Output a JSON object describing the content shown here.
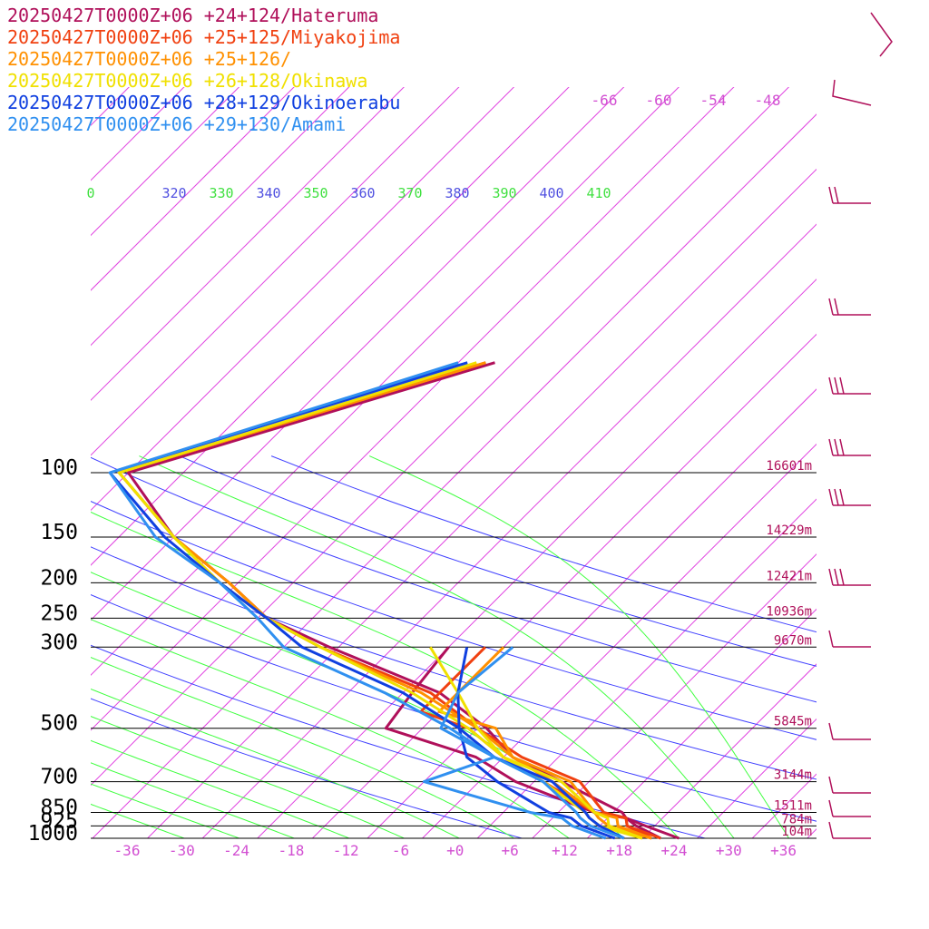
{
  "chart_data": {
    "type": "line",
    "title": "",
    "xlabel": "",
    "ylabel": "",
    "legend_position": "top-left",
    "colors": {
      "isotherm": "#e040e0",
      "isobar": "#000000",
      "theta": "#4040ff",
      "theta_e": "#40ff40",
      "label_pink": "#d24fd2",
      "theta_label": "#5050e0",
      "theta_e_label": "#40e040",
      "wind": "#b0105a"
    },
    "pressure_levels": [
      {
        "p": 100,
        "label": "100",
        "height": "16601m"
      },
      {
        "p": 150,
        "label": "150",
        "height": "14229m"
      },
      {
        "p": 200,
        "label": "200",
        "height": "12421m"
      },
      {
        "p": 250,
        "label": "250",
        "height": "10936m"
      },
      {
        "p": 300,
        "label": "300",
        "height": "9670m"
      },
      {
        "p": 500,
        "label": "500",
        "height": "5845m"
      },
      {
        "p": 700,
        "label": "700",
        "height": "3144m"
      },
      {
        "p": 850,
        "label": "850",
        "height": "1511m"
      },
      {
        "p": 925,
        "label": "925",
        "height": "784m"
      },
      {
        "p": 1000,
        "label": "1000",
        "height": "104m"
      }
    ],
    "temp_ticks": [
      "-36",
      "-30",
      "-24",
      "-18",
      "-12",
      "-6",
      "+0",
      "+6",
      "+12",
      "+18",
      "+24",
      "+30",
      "+36"
    ],
    "upper_temp_labels": [
      "-66",
      "-60",
      "-54",
      "-48"
    ],
    "theta_labels": [
      {
        "text": "0",
        "kind": "theta_e"
      },
      {
        "text": "320",
        "kind": "theta"
      },
      {
        "text": "330",
        "kind": "theta_e"
      },
      {
        "text": "340",
        "kind": "theta"
      },
      {
        "text": "350",
        "kind": "theta_e"
      },
      {
        "text": "360",
        "kind": "theta"
      },
      {
        "text": "370",
        "kind": "theta_e"
      },
      {
        "text": "380",
        "kind": "theta"
      },
      {
        "text": "390",
        "kind": "theta_e"
      },
      {
        "text": "400",
        "kind": "theta"
      },
      {
        "text": "410",
        "kind": "theta_e"
      }
    ],
    "series": [
      {
        "name": "20250427T0000Z+06 +24+124/Hateruma",
        "color": "#b0105a",
        "temperature": [
          [
            -48,
            50
          ],
          [
            -76,
            100
          ],
          [
            -64,
            150
          ],
          [
            -53,
            200
          ],
          [
            -45,
            250
          ],
          [
            -35,
            300
          ],
          [
            -18,
            400
          ],
          [
            -9,
            500
          ],
          [
            -3,
            600
          ],
          [
            5,
            700
          ],
          [
            15,
            850
          ],
          [
            16,
            880
          ],
          [
            19,
            925
          ],
          [
            24,
            1000
          ]
        ],
        "dewpoint": [
          [
            -22,
            300
          ],
          [
            -21,
            400
          ],
          [
            -20,
            500
          ],
          [
            -7,
            600
          ],
          [
            0,
            700
          ],
          [
            12,
            850
          ],
          [
            16,
            880
          ],
          [
            18,
            925
          ],
          [
            22,
            1000
          ]
        ]
      },
      {
        "name": "20250427T0000Z+06 +25+125/Miyakojima",
        "color": "#f04010",
        "temperature": [
          [
            -49,
            50
          ],
          [
            -77,
            100
          ],
          [
            -64,
            150
          ],
          [
            -53,
            200
          ],
          [
            -45,
            250
          ],
          [
            -36,
            300
          ],
          [
            -19,
            400
          ],
          [
            -10,
            500
          ],
          [
            -2,
            600
          ],
          [
            7,
            700
          ],
          [
            13,
            850
          ],
          [
            16,
            880
          ],
          [
            17,
            925
          ],
          [
            22,
            1000
          ]
        ],
        "dewpoint": [
          [
            -18,
            300
          ],
          [
            -18,
            450
          ],
          [
            -11,
            500
          ],
          [
            -4,
            600
          ],
          [
            3,
            700
          ],
          [
            12,
            850
          ],
          [
            16,
            880
          ],
          [
            17,
            925
          ],
          [
            21,
            1000
          ]
        ]
      },
      {
        "name": "20250427T0000Z+06 +25+126/",
        "color": "#ff9000",
        "temperature": [
          [
            -49,
            50
          ],
          [
            -77,
            100
          ],
          [
            -64,
            150
          ],
          [
            -53,
            200
          ],
          [
            -45,
            250
          ],
          [
            -36,
            300
          ],
          [
            -20,
            400
          ],
          [
            -10,
            500
          ],
          [
            -3,
            600
          ],
          [
            6,
            700
          ],
          [
            12,
            850
          ],
          [
            15,
            880
          ],
          [
            16,
            925
          ],
          [
            21,
            1000
          ]
        ],
        "dewpoint": [
          [
            -16,
            300
          ],
          [
            -16,
            450
          ],
          [
            -8,
            500
          ],
          [
            -3,
            600
          ],
          [
            4,
            700
          ],
          [
            12,
            850
          ],
          [
            13,
            880
          ],
          [
            15,
            925
          ],
          [
            21,
            1000
          ]
        ]
      },
      {
        "name": "20250427T0000Z+06 +26+128/Okinawa",
        "color": "#f0e000",
        "temperature": [
          [
            -50,
            50
          ],
          [
            -77,
            100
          ],
          [
            -64,
            150
          ],
          [
            -54,
            200
          ],
          [
            -45,
            250
          ],
          [
            -36,
            300
          ],
          [
            -21,
            400
          ],
          [
            -11,
            500
          ],
          [
            -4,
            600
          ],
          [
            5,
            700
          ],
          [
            12,
            850
          ],
          [
            14,
            880
          ],
          [
            15,
            925
          ],
          [
            20,
            1000
          ]
        ],
        "dewpoint": [
          [
            -24,
            300
          ],
          [
            -16,
            400
          ],
          [
            -10,
            500
          ],
          [
            -4,
            600
          ],
          [
            3,
            700
          ],
          [
            11,
            850
          ],
          [
            12,
            880
          ],
          [
            14,
            925
          ],
          [
            20,
            1000
          ]
        ]
      },
      {
        "name": "20250427T0000Z+06 +28+129/Okinoerabu",
        "color": "#1040e0",
        "temperature": [
          [
            -51,
            50
          ],
          [
            -78,
            100
          ],
          [
            -65,
            150
          ],
          [
            -54,
            200
          ],
          [
            -45,
            250
          ],
          [
            -38,
            300
          ],
          [
            -22,
            400
          ],
          [
            -12,
            500
          ],
          [
            -5,
            600
          ],
          [
            4,
            700
          ],
          [
            11,
            850
          ],
          [
            12,
            880
          ],
          [
            14,
            925
          ],
          [
            18,
            1000
          ]
        ],
        "dewpoint": [
          [
            -20,
            300
          ],
          [
            -16,
            400
          ],
          [
            -12,
            500
          ],
          [
            -8,
            600
          ],
          [
            -2,
            700
          ],
          [
            7,
            850
          ],
          [
            10,
            880
          ],
          [
            12,
            925
          ],
          [
            17,
            1000
          ]
        ]
      },
      {
        "name": "20250427T0000Z+06 +29+130/Amami",
        "color": "#3090f0",
        "temperature": [
          [
            -52,
            50
          ],
          [
            -78,
            100
          ],
          [
            -66,
            150
          ],
          [
            -54,
            200
          ],
          [
            -46,
            250
          ],
          [
            -40,
            300
          ],
          [
            -24,
            400
          ],
          [
            -13,
            500
          ],
          [
            -5,
            600
          ],
          [
            3,
            700
          ],
          [
            10,
            850
          ],
          [
            11,
            880
          ],
          [
            13,
            925
          ],
          [
            18,
            1000
          ]
        ],
        "dewpoint": [
          [
            -15,
            300
          ],
          [
            -16,
            400
          ],
          [
            -14,
            500
          ],
          [
            -5,
            600
          ],
          [
            -10,
            700
          ],
          [
            5,
            850
          ],
          [
            9,
            880
          ],
          [
            11,
            925
          ],
          [
            16,
            1000
          ]
        ]
      }
    ]
  }
}
